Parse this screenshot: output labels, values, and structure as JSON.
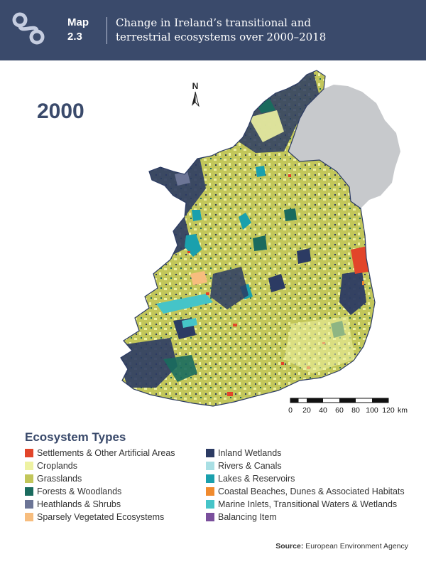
{
  "header": {
    "map_label_line1": "Map",
    "map_label_line2": "2.3",
    "title_line1": "Change in Ireland’s transitional and",
    "title_line2": "terrestrial ecosystems over 2000–2018",
    "background": "#3a4a6b"
  },
  "year": "2000",
  "north_label": "N",
  "scale": {
    "ticks": [
      "0",
      "20",
      "40",
      "60",
      "80",
      "100",
      "120"
    ],
    "unit": "km"
  },
  "legend": {
    "title": "Ecosystem Types",
    "left": [
      {
        "label": "Settlements & Other Artificial Areas",
        "color": "#e2452a"
      },
      {
        "label": "Croplands",
        "color": "#eef2a2"
      },
      {
        "label": "Grasslands",
        "color": "#c2c65a"
      },
      {
        "label": "Forests & Woodlands",
        "color": "#1a6b5e"
      },
      {
        "label": "Heathlands & Shrubs",
        "color": "#6c7596"
      },
      {
        "label": "Sparsely Vegetated Ecosystems",
        "color": "#f7bd7e"
      }
    ],
    "right": [
      {
        "label": "Inland Wetlands",
        "color": "#2c3b63"
      },
      {
        "label": "Rivers & Canals",
        "color": "#a9dfe4"
      },
      {
        "label": "Lakes & Reservoirs",
        "color": "#1aa0ad"
      },
      {
        "label": "Coastal Beaches, Dunes & Associated Habitats",
        "color": "#f08a2e"
      },
      {
        "label": "Marine Inlets, Transitional Waters & Wetlands",
        "color": "#45c4c8"
      },
      {
        "label": "Balancing Item",
        "color": "#7a4f9c"
      }
    ]
  },
  "source": {
    "label": "Source:",
    "text": "European Environment Agency"
  },
  "northern_ireland_color": "#c7c9cc"
}
